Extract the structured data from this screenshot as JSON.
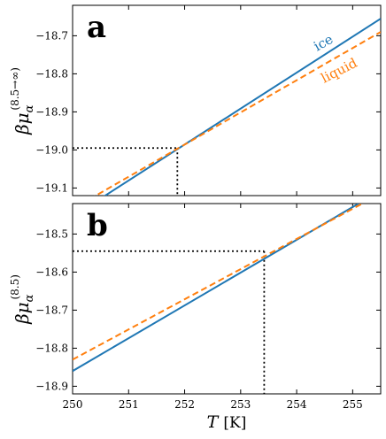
{
  "chart_data": [
    {
      "type": "line",
      "panel_label": "a",
      "ylabel_main": "βμ",
      "ylabel_sub": "α",
      "ylabel_sup": "(8.5→∞)",
      "xlim": [
        250,
        255.5
      ],
      "ylim": [
        -19.12,
        -18.62
      ],
      "yticks": [
        -19.1,
        -19.0,
        -18.9,
        -18.8,
        -18.7
      ],
      "ytick_labels": [
        "−19.1",
        "−19.0",
        "−18.9",
        "−18.8",
        "−18.7"
      ],
      "series": [
        {
          "name": "ice",
          "style": "solid",
          "color": "#1f77b4",
          "x": [
            250,
            255.5
          ],
          "y": [
            -19.175,
            -18.655
          ]
        },
        {
          "name": "liquid",
          "style": "dashed",
          "color": "#ff7f0e",
          "x": [
            250,
            255.5
          ],
          "y": [
            -19.155,
            -18.69
          ]
        }
      ],
      "crossing": {
        "x": 251.87,
        "y": -18.995
      }
    },
    {
      "type": "line",
      "panel_label": "b",
      "ylabel_main": "βμ",
      "ylabel_sub": "α",
      "ylabel_sup": "(8.5)",
      "xlabel_main": "T",
      "xlabel_unit": "[K]",
      "xlim": [
        250,
        255.5
      ],
      "ylim": [
        -18.92,
        -18.42
      ],
      "xticks": [
        250,
        251,
        252,
        253,
        254,
        255
      ],
      "xtick_labels": [
        "250",
        "251",
        "252",
        "253",
        "254",
        "255"
      ],
      "yticks": [
        -18.9,
        -18.8,
        -18.7,
        -18.6,
        -18.5
      ],
      "ytick_labels": [
        "−18.9",
        "−18.8",
        "−18.7",
        "−18.6",
        "−18.5"
      ],
      "series": [
        {
          "name": "ice",
          "style": "solid",
          "color": "#1f77b4",
          "x": [
            250,
            255.5
          ],
          "y": [
            -18.86,
            -18.386
          ]
        },
        {
          "name": "liquid",
          "style": "dashed",
          "color": "#ff7f0e",
          "x": [
            250,
            255.5
          ],
          "y": [
            -18.83,
            -18.394
          ]
        }
      ],
      "crossing": {
        "x": 253.42,
        "y": -18.545
      }
    }
  ]
}
